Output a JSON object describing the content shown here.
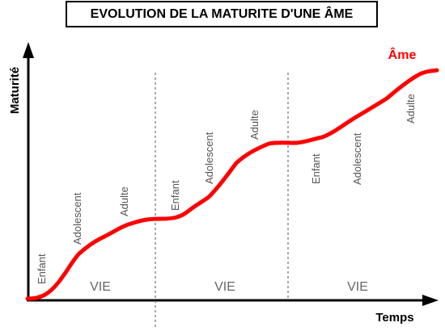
{
  "title": "EVOLUTION DE LA MATURITE D'UNE ÂME",
  "axes": {
    "y_label": "Maturité",
    "x_label": "Temps"
  },
  "curve": {
    "label": "Âme",
    "color": "#ff0000"
  },
  "lives": [
    {
      "label": "VIE",
      "stages": [
        "Enfant",
        "Adolescent",
        "Adulte"
      ]
    },
    {
      "label": "VIE",
      "stages": [
        "Enfant",
        "Adolescent",
        "Adulte"
      ]
    },
    {
      "label": "VIE",
      "stages": [
        "Enfant",
        "Adolescent",
        "Adulte"
      ]
    }
  ],
  "dividers": {
    "style": "dashed",
    "count": 2
  }
}
